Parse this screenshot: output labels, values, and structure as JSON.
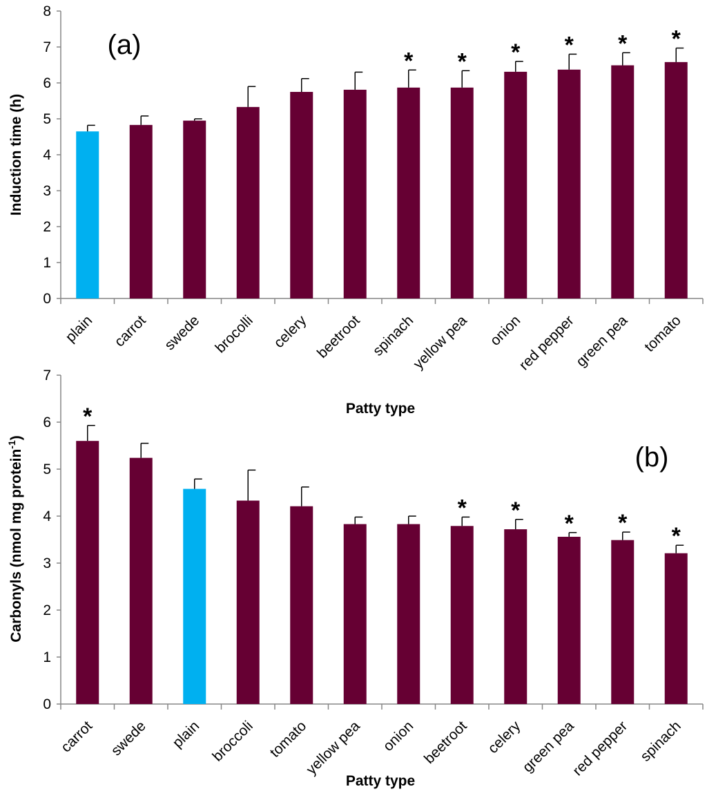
{
  "chart_data": [
    {
      "type": "bar",
      "panel_label": "(a)",
      "xlabel": "Patty type",
      "ylabel": "Induction time (h)",
      "ylim": [
        0,
        8
      ],
      "yticks": [
        "0",
        "1",
        "2",
        "3",
        "4",
        "5",
        "6",
        "7",
        "8"
      ],
      "categories": [
        "plain",
        "carrot",
        "swede",
        "brocolli",
        "celery",
        "beetroot",
        "spinach",
        "yellow pea",
        "onion",
        "red pepper",
        "green pea",
        "tomato"
      ],
      "values": [
        4.65,
        4.83,
        4.95,
        5.33,
        5.75,
        5.81,
        5.87,
        5.87,
        6.31,
        6.37,
        6.49,
        6.58
      ],
      "errors": [
        0.17,
        0.25,
        0.05,
        0.57,
        0.37,
        0.49,
        0.49,
        0.47,
        0.29,
        0.43,
        0.35,
        0.39
      ],
      "significant": [
        false,
        false,
        false,
        false,
        false,
        false,
        true,
        true,
        true,
        true,
        true,
        true
      ],
      "highlight_category": "plain",
      "marker_symbol": "*"
    },
    {
      "type": "bar",
      "panel_label": "(b)",
      "xlabel": "Patty type",
      "ylabel": "Carbonyls (nmol mg protein",
      "ylabel_superscript": "-1",
      "ylabel_close": ")",
      "ylim": [
        0,
        7
      ],
      "yticks": [
        "0",
        "1",
        "2",
        "3",
        "4",
        "5",
        "6",
        "7"
      ],
      "categories": [
        "carrot",
        "swede",
        "plain",
        "broccoli",
        "tomato",
        "yellow pea",
        "onion",
        "beetroot",
        "celery",
        "green pea",
        "red pepper",
        "spinach"
      ],
      "values": [
        5.6,
        5.24,
        4.58,
        4.33,
        4.21,
        3.83,
        3.83,
        3.79,
        3.72,
        3.56,
        3.49,
        3.21
      ],
      "errors": [
        0.33,
        0.31,
        0.21,
        0.65,
        0.41,
        0.15,
        0.17,
        0.19,
        0.21,
        0.09,
        0.17,
        0.17
      ],
      "significant": [
        true,
        false,
        false,
        false,
        false,
        false,
        false,
        true,
        true,
        true,
        true,
        true
      ],
      "highlight_category": "plain",
      "marker_symbol": "*"
    }
  ],
  "colors": {
    "bar": "#660033",
    "highlight": "#00b0f0",
    "axis": "#868686",
    "text": "#000000"
  }
}
